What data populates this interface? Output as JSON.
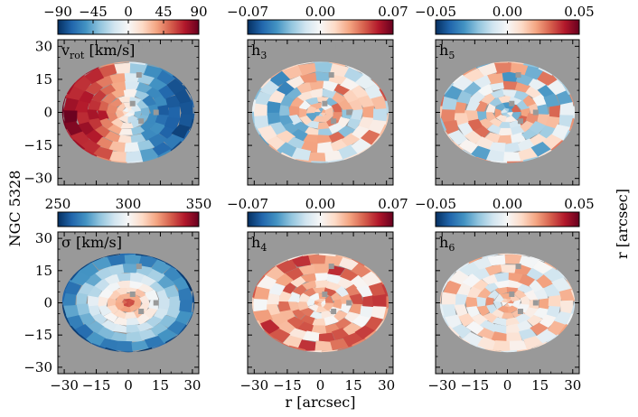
{
  "figure": {
    "galaxy_label": "NGC 5328",
    "right_label": "r [arcsec]"
  },
  "chart_data": [
    {
      "type": "heatmap",
      "panel": "vrot",
      "label_main": "v",
      "label_sub": "rot",
      "label_unit": " [km/s]",
      "colorbar": {
        "ticks": [
          -90,
          -45,
          0,
          45,
          90
        ],
        "tick_labels": [
          "−90",
          "−45",
          "0",
          "45",
          "90"
        ],
        "range": [
          -90,
          90
        ]
      },
      "ylabel": "",
      "yticks": [
        30,
        15,
        0,
        -15,
        -30
      ],
      "ytick_labels": [
        "30",
        "15",
        "0",
        "−15",
        "−30"
      ],
      "xlim": [
        -33,
        33
      ],
      "ylim": [
        -33,
        33
      ],
      "field": "rotation",
      "colormap": "RdBu_r"
    },
    {
      "type": "heatmap",
      "panel": "h3",
      "label_main": "h",
      "label_sub": "3",
      "label_unit": "",
      "colorbar": {
        "ticks": [
          -0.07,
          0.0,
          0.07
        ],
        "tick_labels": [
          "−0.07",
          "0.00",
          "0.07"
        ],
        "range": [
          -0.07,
          0.07
        ]
      },
      "xlim": [
        -33,
        33
      ],
      "ylim": [
        -33,
        33
      ],
      "field": "h3",
      "colormap": "RdBu_r"
    },
    {
      "type": "heatmap",
      "panel": "h5",
      "label_main": "h",
      "label_sub": "5",
      "label_unit": "",
      "colorbar": {
        "ticks": [
          -0.05,
          0.0,
          0.05
        ],
        "tick_labels": [
          "−0.05",
          "0.00",
          "0.05"
        ],
        "range": [
          -0.05,
          0.05
        ]
      },
      "xlim": [
        -33,
        33
      ],
      "ylim": [
        -33,
        33
      ],
      "field": "h5",
      "colormap": "RdBu_r"
    },
    {
      "type": "heatmap",
      "panel": "sigma",
      "label_main": "σ",
      "label_sub": "",
      "label_unit": " [km/s]",
      "colorbar": {
        "ticks": [
          250,
          300,
          350
        ],
        "tick_labels": [
          "250",
          "300",
          "350"
        ],
        "range": [
          250,
          350
        ]
      },
      "yticks": [
        30,
        15,
        0,
        -15,
        -30
      ],
      "ytick_labels": [
        "30",
        "15",
        "0",
        "−15",
        "−30"
      ],
      "xticks": [
        -30,
        -15,
        0,
        15,
        30
      ],
      "xtick_labels": [
        "−30",
        "−15",
        "0",
        "15",
        "30"
      ],
      "xlim": [
        -33,
        33
      ],
      "ylim": [
        -33,
        33
      ],
      "field": "dispersion",
      "colormap": "RdBu_r"
    },
    {
      "type": "heatmap",
      "panel": "h4",
      "label_main": "h",
      "label_sub": "4",
      "label_unit": "",
      "colorbar": {
        "ticks": [
          -0.07,
          0.0,
          0.07
        ],
        "tick_labels": [
          "−0.07",
          "0.00",
          "0.07"
        ],
        "range": [
          -0.07,
          0.07
        ]
      },
      "xticks": [
        -30,
        -15,
        0,
        15,
        30
      ],
      "xtick_labels": [
        "−30",
        "−15",
        "0",
        "15",
        "30"
      ],
      "xlabel": "r [arcsec]",
      "xlim": [
        -33,
        33
      ],
      "ylim": [
        -33,
        33
      ],
      "field": "h4",
      "colormap": "RdBu_r"
    },
    {
      "type": "heatmap",
      "panel": "h6",
      "label_main": "h",
      "label_sub": "6",
      "label_unit": "",
      "colorbar": {
        "ticks": [
          -0.05,
          0.0,
          0.05
        ],
        "tick_labels": [
          "−0.05",
          "0.00",
          "0.05"
        ],
        "range": [
          -0.05,
          0.05
        ]
      },
      "xticks": [
        -30,
        -15,
        0,
        15,
        30
      ],
      "xtick_labels": [
        "−30",
        "−15",
        "0",
        "15",
        "30"
      ],
      "xlim": [
        -33,
        33
      ],
      "ylim": [
        -33,
        33
      ],
      "field": "h6",
      "colormap": "RdBu_r"
    }
  ],
  "colors": {
    "background_mask": "#999999",
    "frame": "#000000"
  }
}
